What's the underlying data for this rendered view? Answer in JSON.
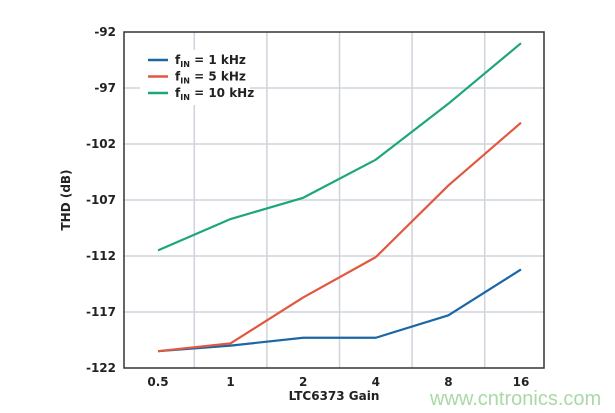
{
  "chart_data": {
    "type": "line",
    "title": "",
    "xlabel": "LTC6373 Gain",
    "ylabel": "THD (dB)",
    "categories": [
      "0.5",
      "1",
      "2",
      "4",
      "8",
      "16"
    ],
    "ylim": [
      -122,
      -92
    ],
    "yticks": [
      -92,
      -97,
      -102,
      -107,
      -112,
      -117,
      -122
    ],
    "grid": true,
    "legend_position": "top-left",
    "series": [
      {
        "name_base": "f",
        "name_sub": "IN",
        "name_rest": " = 1 kHz",
        "color": "#1b67a6",
        "values": [
          -120.5,
          -120.0,
          -119.3,
          -119.3,
          -117.3,
          -113.2
        ]
      },
      {
        "name_base": "f",
        "name_sub": "IN",
        "name_rest": " = 5 kHz",
        "color": "#e2583f",
        "values": [
          -120.5,
          -119.8,
          -115.7,
          -112.1,
          -105.7,
          -100.1
        ]
      },
      {
        "name_base": "f",
        "name_sub": "IN",
        "name_rest": " = 10 kHz",
        "color": "#1ea67b",
        "values": [
          -111.5,
          -108.7,
          -106.8,
          -103.4,
          -98.4,
          -93.0
        ]
      }
    ]
  },
  "watermark": "www.cntronics.com"
}
